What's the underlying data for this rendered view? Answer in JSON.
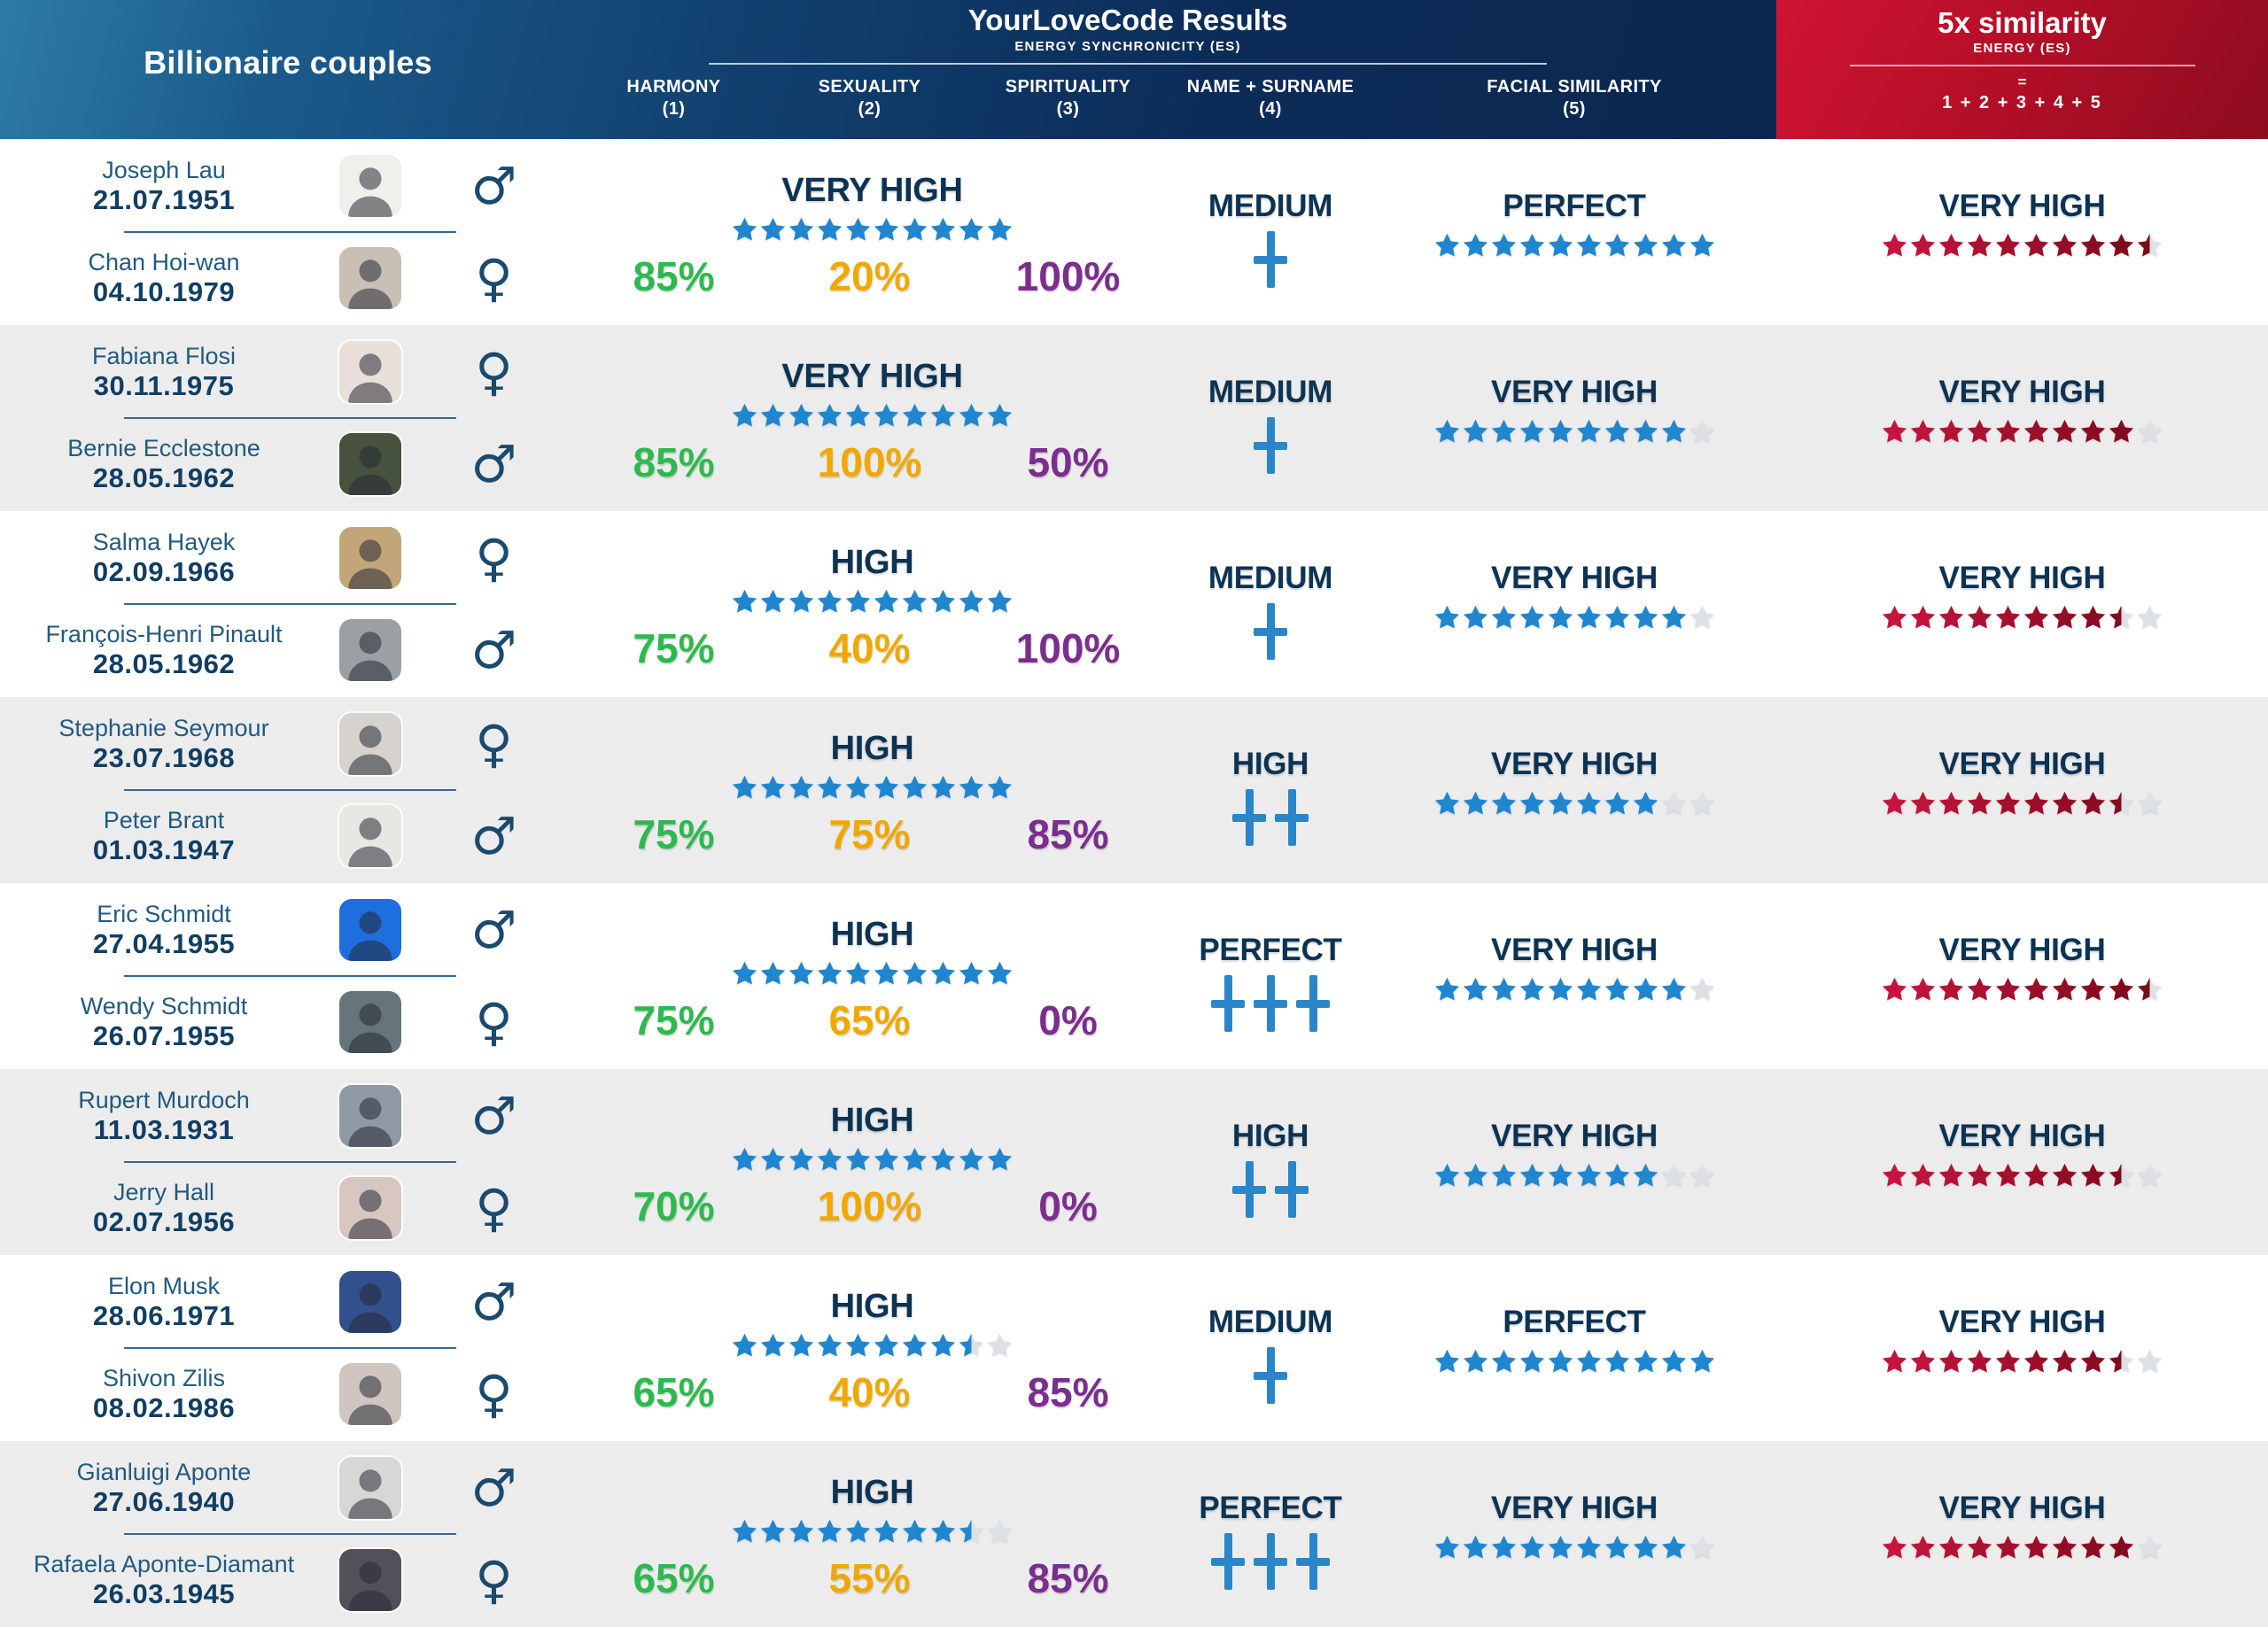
{
  "header": {
    "left_title": "Billionaire couples",
    "center_title": "YourLoveCode Results",
    "center_subtitle": "ENERGY SYNCHRONICITY (ES)",
    "columns": [
      {
        "label": "HARMONY",
        "num": "(1)"
      },
      {
        "label": "SEXUALITY",
        "num": "(2)"
      },
      {
        "label": "SPIRITUALITY",
        "num": "(3)"
      },
      {
        "label": "NAME + SURNAME",
        "num": "(4)"
      },
      {
        "label": "FACIAL SIMILARITY",
        "num": "(5)"
      }
    ],
    "right": {
      "title": "5x similarity",
      "subtitle": "ENERGY (ES)",
      "equals": "=",
      "formula": "1 + 2 + 3 + 4 + 5"
    }
  },
  "colors": {
    "blue_star": "#1f86cf",
    "gray_star": "#dde1e6",
    "red_star_start": "#c6143e",
    "red_star_end": "#7a0a1a",
    "green_percent": "#2eb94f",
    "amber_percent": "#f0a800",
    "purple_percent": "#7b2e8e",
    "navy_label": "#0d3352",
    "plus_blue": "#2a86c9",
    "row_alt_bg": "#ececec",
    "header_navy": "#0c2c58",
    "header_red": "#b50f28"
  },
  "chart_data": {
    "type": "table",
    "title": "YourLoveCode Results — Billionaire couples",
    "columns": [
      "Couple",
      "Energy Synchronicity (ES) rating (stars /10)",
      "Harmony (1)",
      "Sexuality (2)",
      "Spirituality (3)",
      "Name + Surname (4)",
      "Facial Similarity (5) (stars /10)",
      "5x similarity Energy (ES) (stars /10)"
    ],
    "rows": [
      {
        "p1": {
          "name": "Joseph Lau",
          "dob": "21.07.1951",
          "gender": "male",
          "photo_bg": "#f0efec"
        },
        "p2": {
          "name": "Chan Hoi-wan",
          "dob": "04.10.1979",
          "gender": "female",
          "photo_bg": "#c9bfb4"
        },
        "es": {
          "label": "VERY HIGH",
          "stars": 10
        },
        "harmony": "85%",
        "sexuality": "20%",
        "spirituality": "100%",
        "name_surname": {
          "label": "MEDIUM",
          "plus": 1
        },
        "facial": {
          "label": "PERFECT",
          "stars": 10
        },
        "similarity5x": {
          "label": "VERY HIGH",
          "stars": 9.5
        }
      },
      {
        "p1": {
          "name": "Fabiana Flosi",
          "dob": "30.11.1975",
          "gender": "female",
          "photo_bg": "#e8e0d8"
        },
        "p2": {
          "name": "Bernie Ecclestone",
          "dob": "28.05.1962",
          "gender": "male",
          "photo_bg": "#47523f"
        },
        "es": {
          "label": "VERY HIGH",
          "stars": 10
        },
        "harmony": "85%",
        "sexuality": "100%",
        "spirituality": "50%",
        "name_surname": {
          "label": "MEDIUM",
          "plus": 1
        },
        "facial": {
          "label": "VERY HIGH",
          "stars": 9
        },
        "similarity5x": {
          "label": "VERY HIGH",
          "stars": 9
        }
      },
      {
        "p1": {
          "name": "Salma Hayek",
          "dob": "02.09.1966",
          "gender": "female",
          "photo_bg": "#c2a579"
        },
        "p2": {
          "name": "François-Henri Pinault",
          "dob": "28.05.1962",
          "gender": "male",
          "photo_bg": "#9aa0a4"
        },
        "es": {
          "label": "HIGH",
          "stars": 10
        },
        "harmony": "75%",
        "sexuality": "40%",
        "spirituality": "100%",
        "name_surname": {
          "label": "MEDIUM",
          "plus": 1
        },
        "facial": {
          "label": "VERY HIGH",
          "stars": 9
        },
        "similarity5x": {
          "label": "VERY HIGH",
          "stars": 8.5
        }
      },
      {
        "p1": {
          "name": "Stephanie Seymour",
          "dob": "23.07.1968",
          "gender": "female",
          "photo_bg": "#d6d2ce"
        },
        "p2": {
          "name": "Peter Brant",
          "dob": "01.03.1947",
          "gender": "male",
          "photo_bg": "#e9e7e3"
        },
        "es": {
          "label": "HIGH",
          "stars": 10
        },
        "harmony": "75%",
        "sexuality": "75%",
        "spirituality": "85%",
        "name_surname": {
          "label": "HIGH",
          "plus": 2
        },
        "facial": {
          "label": "VERY HIGH",
          "stars": 8
        },
        "similarity5x": {
          "label": "VERY HIGH",
          "stars": 8.5
        }
      },
      {
        "p1": {
          "name": "Eric Schmidt",
          "dob": "27.04.1955",
          "gender": "male",
          "photo_bg": "#1e6ede"
        },
        "p2": {
          "name": "Wendy Schmidt",
          "dob": "26.07.1955",
          "gender": "female",
          "photo_bg": "#66757a"
        },
        "es": {
          "label": "HIGH",
          "stars": 10
        },
        "harmony": "75%",
        "sexuality": "65%",
        "spirituality": "0%",
        "name_surname": {
          "label": "PERFECT",
          "plus": 3
        },
        "facial": {
          "label": "VERY HIGH",
          "stars": 9
        },
        "similarity5x": {
          "label": "VERY HIGH",
          "stars": 9.5
        }
      },
      {
        "p1": {
          "name": "Rupert Murdoch",
          "dob": "11.03.1931",
          "gender": "male",
          "photo_bg": "#909aa5"
        },
        "p2": {
          "name": "Jerry Hall",
          "dob": "02.07.1956",
          "gender": "female",
          "photo_bg": "#d8c6c0"
        },
        "es": {
          "label": "HIGH",
          "stars": 10
        },
        "harmony": "70%",
        "sexuality": "100%",
        "spirituality": "0%",
        "name_surname": {
          "label": "HIGH",
          "plus": 2
        },
        "facial": {
          "label": "VERY HIGH",
          "stars": 8
        },
        "similarity5x": {
          "label": "VERY HIGH",
          "stars": 8.5
        }
      },
      {
        "p1": {
          "name": "Elon Musk",
          "dob": "28.06.1971",
          "gender": "male",
          "photo_bg": "#33508e"
        },
        "p2": {
          "name": "Shivon Zilis",
          "dob": "08.02.1986",
          "gender": "female",
          "photo_bg": "#cfc6bf"
        },
        "es": {
          "label": "HIGH",
          "stars": 8.5
        },
        "harmony": "65%",
        "sexuality": "40%",
        "spirituality": "85%",
        "name_surname": {
          "label": "MEDIUM",
          "plus": 1
        },
        "facial": {
          "label": "PERFECT",
          "stars": 10
        },
        "similarity5x": {
          "label": "VERY HIGH",
          "stars": 8.5
        }
      },
      {
        "p1": {
          "name": "Gianluigi Aponte",
          "dob": "27.06.1940",
          "gender": "male",
          "photo_bg": "#d7d7d5"
        },
        "p2": {
          "name": "Rafaela Aponte-Diamant",
          "dob": "26.03.1945",
          "gender": "female",
          "photo_bg": "#53505a"
        },
        "es": {
          "label": "HIGH",
          "stars": 8.5
        },
        "harmony": "65%",
        "sexuality": "55%",
        "spirituality": "85%",
        "name_surname": {
          "label": "PERFECT",
          "plus": 3
        },
        "facial": {
          "label": "VERY HIGH",
          "stars": 9
        },
        "similarity5x": {
          "label": "VERY HIGH",
          "stars": 9
        }
      }
    ]
  }
}
